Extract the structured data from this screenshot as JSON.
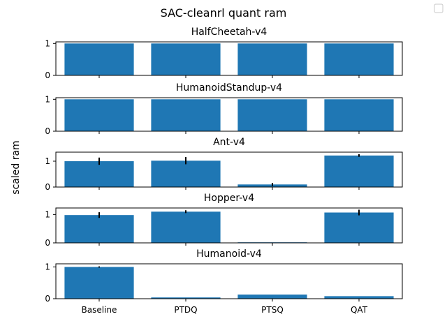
{
  "chart_data": {
    "type": "bar",
    "title": "SAC-cleanrl quant ram",
    "ylabel": "scaled ram",
    "legend": "top-right",
    "legend_entries": [],
    "categories": [
      "Baseline",
      "PTDQ",
      "PTSQ",
      "QAT"
    ],
    "colors": {
      "bar": "#1f77b4",
      "error": "#000000",
      "axis": "#000000"
    },
    "subplots": [
      {
        "title": "HalfCheetah-v4",
        "ylim": [
          0,
          1.05
        ],
        "yticks": [
          0,
          1
        ],
        "values": [
          1.0,
          1.0,
          1.0,
          1.0
        ],
        "errors": [
          0,
          0,
          0,
          0
        ]
      },
      {
        "title": "HumanoidStandup-v4",
        "ylim": [
          0,
          1.05
        ],
        "yticks": [
          0,
          1
        ],
        "values": [
          1.0,
          1.0,
          1.0,
          1.0
        ],
        "errors": [
          0,
          0,
          0,
          0
        ]
      },
      {
        "title": "Ant-v4",
        "ylim": [
          0,
          1.35
        ],
        "yticks": [
          0,
          1
        ],
        "values": [
          1.0,
          1.02,
          0.1,
          1.22
        ],
        "errors": [
          0.14,
          0.14,
          0.06,
          0.05
        ]
      },
      {
        "title": "Hopper-v4",
        "ylim": [
          0,
          1.23
        ],
        "yticks": [
          0,
          1
        ],
        "values": [
          0.98,
          1.1,
          0.02,
          1.07
        ],
        "errors": [
          0.1,
          0.05,
          0.0,
          0.1
        ]
      },
      {
        "title": "Humanoid-v4",
        "ylim": [
          0,
          1.1
        ],
        "yticks": [
          0,
          1
        ],
        "values": [
          1.0,
          0.04,
          0.13,
          0.08
        ],
        "errors": [
          0.02,
          0.0,
          0.0,
          0.0
        ]
      }
    ]
  }
}
